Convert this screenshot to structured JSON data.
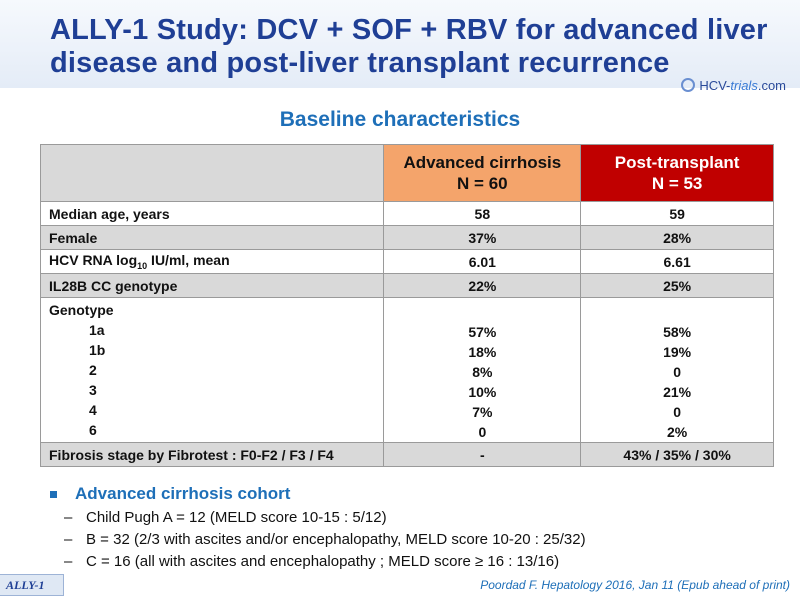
{
  "title": "ALLY-1 Study: DCV + SOF + RBV for advanced liver disease and post-liver transplant recurrence",
  "logo": {
    "prefix": "HCV-",
    "trials": "trials",
    "suffix": ".com"
  },
  "subtitle": "Baseline characteristics",
  "table": {
    "col1_header": [
      "Advanced cirrhosis",
      "N = 60"
    ],
    "col2_header": [
      "Post-transplant",
      "N = 53"
    ],
    "rows": [
      {
        "label": "Median age, years",
        "c1": "58",
        "c2": "59"
      },
      {
        "label": "Female",
        "c1": "37%",
        "c2": "28%"
      },
      {
        "label_pre": "HCV RNA log",
        "label_sub": "10",
        "label_post": " IU/ml, mean",
        "c1": "6.01",
        "c2": "6.61"
      },
      {
        "label": "IL28B CC genotype",
        "c1": "22%",
        "c2": "25%"
      }
    ],
    "genotype": {
      "label": "Genotype",
      "subtypes": [
        "1a",
        "1b",
        "2",
        "3",
        "4",
        "6"
      ],
      "c1": [
        "57%",
        "18%",
        "8%",
        "10%",
        "7%",
        "0"
      ],
      "c2": [
        "58%",
        "19%",
        "0",
        "21%",
        "0",
        "2%"
      ]
    },
    "fibrosis": {
      "label": "Fibrosis stage by Fibrotest : F0-F2 / F3 / F4",
      "c1": "-",
      "c2": "43% / 35% / 30%"
    }
  },
  "bullets": {
    "heading": "Advanced cirrhosis cohort",
    "items": [
      "Child Pugh A = 12 (MELD score 10-15 : 5/12)",
      "B = 32 (2/3 with ascites and/or encephalopathy, MELD score 10-20 : 25/32)",
      "C = 16 (all with ascites and encephalopathy ; MELD score ≥ 16 : 13/16)"
    ]
  },
  "study_tag": "ALLY-1",
  "reference": "Poordad F. Hepatology 2016, Jan 11 (Epub ahead of print)"
}
